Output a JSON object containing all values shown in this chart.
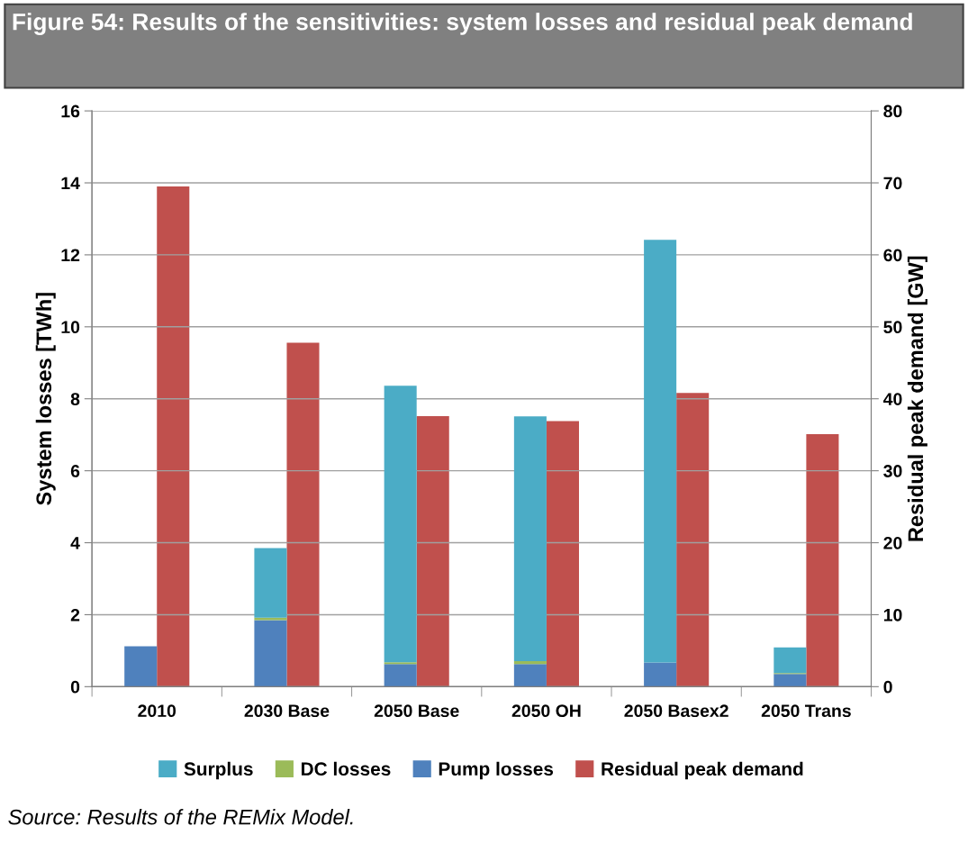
{
  "chart_data": {
    "type": "bar",
    "title": "Figure 54: Results of the sensitivities: system losses and residual peak demand",
    "ylabel": "System losses [TWh]",
    "y2label": "Residual peak demand [GW]",
    "categories": [
      "2010",
      "2030 Base",
      "2050 Base",
      "2050 OH",
      "2050 Basex2",
      "2050 Trans"
    ],
    "stacked": true,
    "series": [
      {
        "name": "Pump losses",
        "color": "#4f81bd",
        "values": [
          1.12,
          1.85,
          0.63,
          0.63,
          0.67,
          0.35
        ]
      },
      {
        "name": "DC losses",
        "color": "#9bbb59",
        "values": [
          0,
          0.07,
          0.05,
          0.08,
          0,
          0.03
        ]
      },
      {
        "name": "Surplus",
        "color": "#4bacc6",
        "values": [
          0,
          1.93,
          7.68,
          6.8,
          11.75,
          0.71
        ]
      },
      {
        "name": "Residual peak demand",
        "color": "#c0504d",
        "axis": "y2",
        "values": [
          69.5,
          47.8,
          37.6,
          36.9,
          40.8,
          35.1
        ]
      }
    ],
    "ylim": [
      0,
      16
    ],
    "yticks": [
      0,
      2,
      4,
      6,
      8,
      10,
      12,
      14,
      16
    ],
    "y2lim": [
      0,
      80
    ],
    "y2ticks": [
      0,
      10,
      20,
      30,
      40,
      50,
      60,
      70,
      80
    ],
    "grid": "y",
    "legend": "bottom",
    "annotations": [
      "Source: Results of the REMix Model."
    ]
  }
}
